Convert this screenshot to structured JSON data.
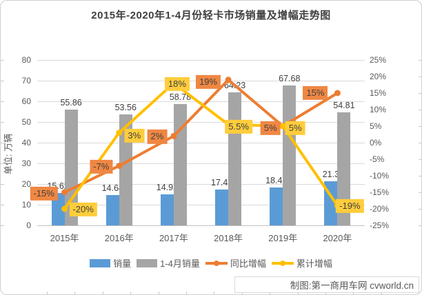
{
  "title": "2015年-2020年1-4月份轻卡市场销量及增幅走势图",
  "watermark": "制图:第一商用车网 cvworld.cn",
  "chart_data": {
    "type": "bar+line combo",
    "title": "2015年-2020年1-4月份轻卡市场销量及增幅走势图",
    "categories": [
      "2015年",
      "2016年",
      "2017年",
      "2018年",
      "2019年",
      "2020年"
    ],
    "left_axis": {
      "title": "单位: 万辆",
      "min": 0,
      "max": 80,
      "step": 10,
      "tick_labels": [
        "0",
        "10",
        "20",
        "30",
        "40",
        "50",
        "60",
        "70",
        "80"
      ]
    },
    "right_axis": {
      "min": -25,
      "max": 25,
      "step": 5,
      "tick_labels": [
        "25%",
        "20%",
        "15%",
        "10%",
        "5%",
        "0%",
        "-5%",
        "-10%",
        "-15%",
        "-20%",
        "-25%"
      ]
    },
    "grid": true,
    "legend_position": "bottom",
    "series": [
      {
        "name": "销量",
        "type": "bar",
        "axis": "left",
        "color": "#5B9BD5",
        "values": [
          15.62,
          14.64,
          14.92,
          17.42,
          18.46,
          21.3
        ],
        "labels": [
          "15.62",
          "14.64",
          "14.92",
          "17.42",
          "18.46",
          "21.3"
        ]
      },
      {
        "name": "1-4月销量",
        "type": "bar",
        "axis": "left",
        "color": "#A5A5A5",
        "values": [
          55.86,
          53.56,
          58.78,
          64.23,
          67.68,
          54.81
        ],
        "labels": [
          "55.86",
          "53.56",
          "58.78",
          "64.23",
          "67.68",
          "54.81"
        ]
      },
      {
        "name": "同比增幅",
        "type": "line",
        "axis": "right",
        "color": "#ED7D31",
        "label_bg": "#EF8743",
        "values": [
          -15,
          -7,
          2,
          19,
          5,
          15
        ],
        "labels": [
          "-15%",
          "-7%",
          "2%",
          "19%",
          "5%",
          "15%"
        ]
      },
      {
        "name": "累计增幅",
        "type": "line",
        "axis": "right",
        "color": "#FFC000",
        "label_bg": "#FFCD3C",
        "values": [
          -20,
          3,
          18,
          5.5,
          5,
          -19
        ],
        "labels": [
          "-20%",
          "3%",
          "18%",
          "5.5%",
          "5%",
          "-19%"
        ]
      }
    ]
  }
}
